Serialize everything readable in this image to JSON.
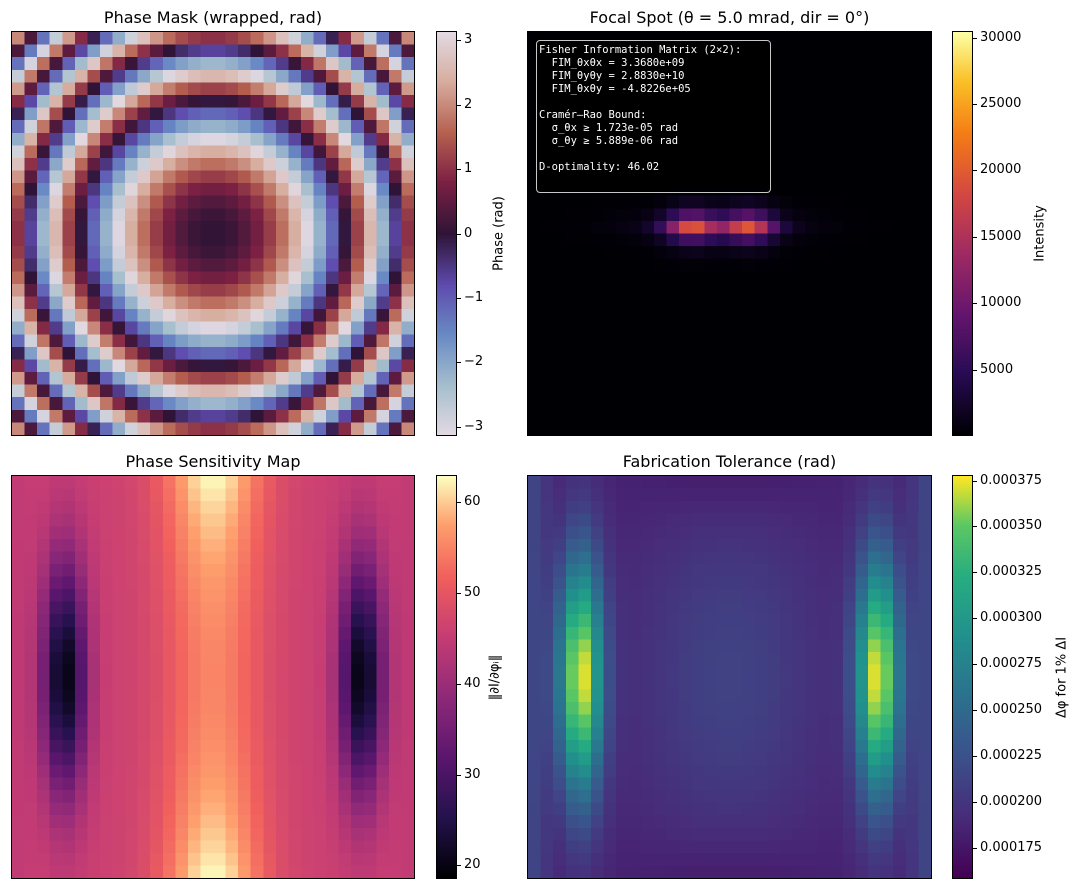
{
  "chart_data": [
    {
      "type": "heatmap",
      "title": "Phase Mask (wrapped, rad)",
      "colormap": "twilight",
      "grid_size": 32,
      "value_range": [
        -3.14159,
        3.14159
      ],
      "colorbar": {
        "label": "Phase (rad)",
        "ticks": [
          3,
          2,
          1,
          0,
          -1,
          -2,
          -3
        ],
        "tick_labels": [
          "3",
          "2",
          "1",
          "0",
          "−1",
          "−2",
          "−3"
        ]
      }
    },
    {
      "type": "heatmap",
      "title": "Focal Spot (θ = 5.0 mrad, dir = 0°)",
      "colormap": "inferno",
      "grid_size": 32,
      "value_range": [
        0,
        30500
      ],
      "colorbar": {
        "label": "Intensity",
        "ticks": [
          30000,
          25000,
          20000,
          15000,
          10000,
          5000
        ],
        "tick_labels": [
          "30000",
          "25000",
          "20000",
          "15000",
          "10000",
          "5000"
        ]
      },
      "annotation": {
        "lines": [
          "Fisher Information Matrix (2×2):",
          "  FIM_θxθx = 3.3680e+09",
          "  FIM_θyθy = 2.8830e+10",
          "  FIM_θxθy = -4.8226e+05",
          "",
          "Cramér–Rao Bound:",
          "  σ_θx ≥ 1.723e-05 rad",
          "  σ_θy ≥ 5.889e-06 rad",
          "",
          "D-optimality: 46.02"
        ]
      }
    },
    {
      "type": "heatmap",
      "title": "Phase Sensitivity Map",
      "colormap": "magma",
      "grid_size": 32,
      "value_range": [
        18.5,
        63
      ],
      "colorbar": {
        "label": "‖∂I/∂φᵢ‖",
        "ticks": [
          60,
          50,
          40,
          30,
          20
        ],
        "tick_labels": [
          "60",
          "50",
          "40",
          "30",
          "20"
        ]
      }
    },
    {
      "type": "heatmap",
      "title": "Fabrication Tolerance (rad)",
      "colormap": "viridis",
      "grid_size": 32,
      "value_range": [
        0.000158,
        0.000378
      ],
      "colorbar": {
        "label": "Δφ for 1% ΔI",
        "ticks": [
          0.000375,
          0.00035,
          0.000325,
          0.0003,
          0.000275,
          0.00025,
          0.000225,
          0.0002,
          0.000175
        ],
        "tick_labels": [
          "0.000375",
          "0.000350",
          "0.000325",
          "0.000300",
          "0.000275",
          "0.000250",
          "0.000225",
          "0.000200",
          "0.000175"
        ]
      }
    }
  ]
}
